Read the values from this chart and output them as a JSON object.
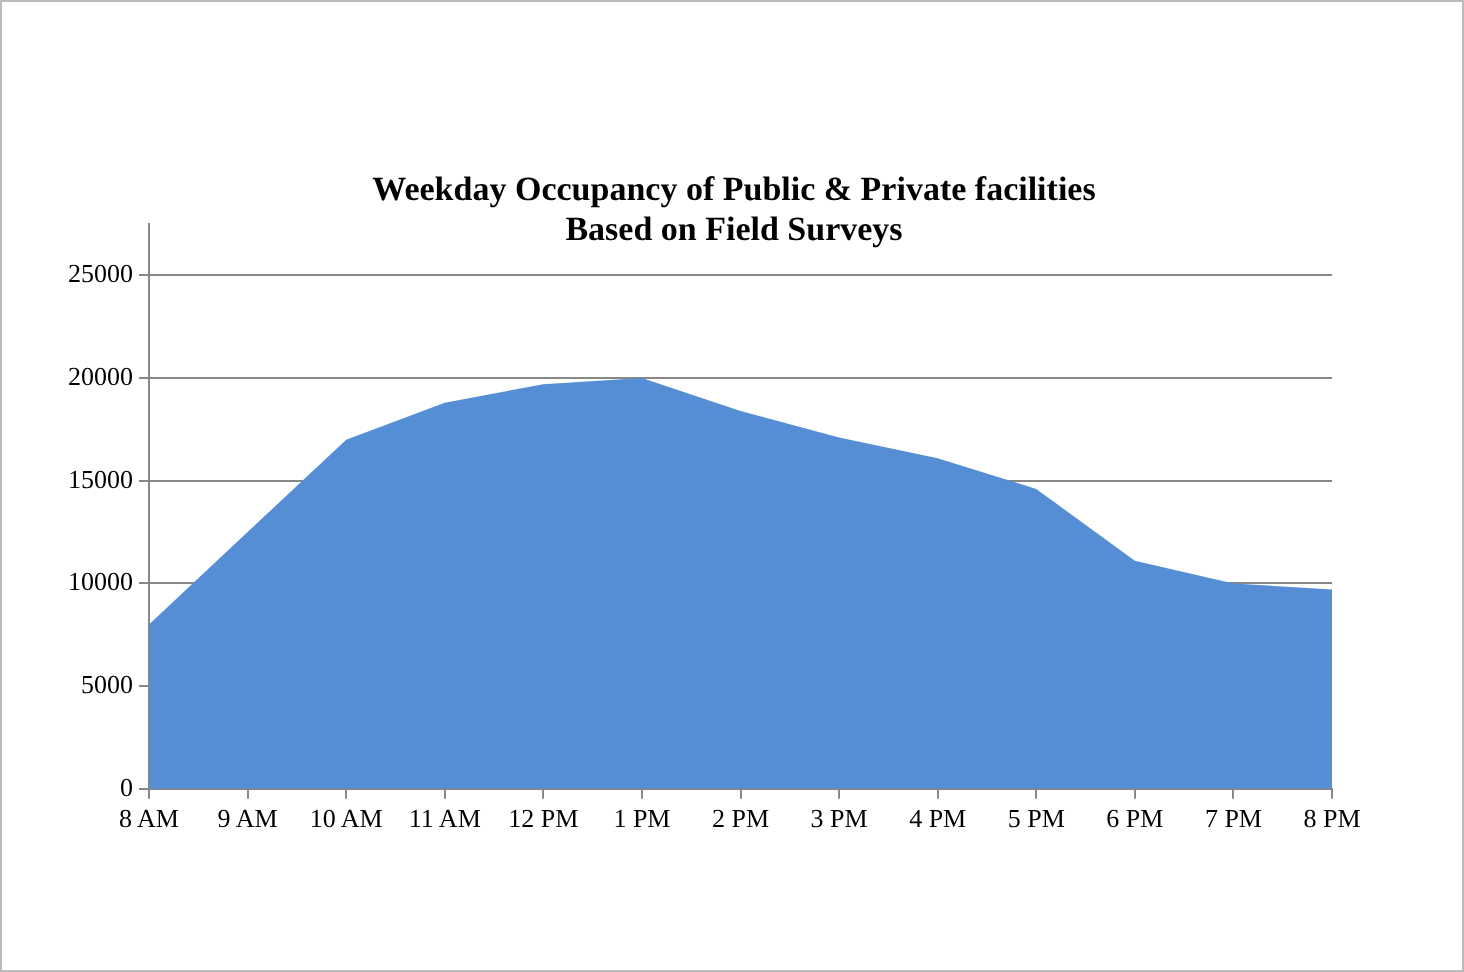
{
  "chart_data": {
    "type": "area",
    "title": "Weekday Occupancy of Public & Private facilities Based on Field Surveys",
    "categories": [
      "8 AM",
      "9 AM",
      "10 AM",
      "11 AM",
      "12 PM",
      "1 PM",
      "2 PM",
      "3 PM",
      "4 PM",
      "5 PM",
      "6 PM",
      "7 PM",
      "8 PM"
    ],
    "series": [
      {
        "color": "#558ed5",
        "values": [
          8000,
          12500,
          17000,
          18800,
          19700,
          20000,
          18400,
          17100,
          16100,
          14600,
          11100,
          10000,
          9700
        ]
      }
    ],
    "ylim": [
      0,
      27500
    ],
    "yticks": [
      0,
      5000,
      10000,
      15000,
      20000,
      25000
    ],
    "grid": "y",
    "legend": false
  }
}
